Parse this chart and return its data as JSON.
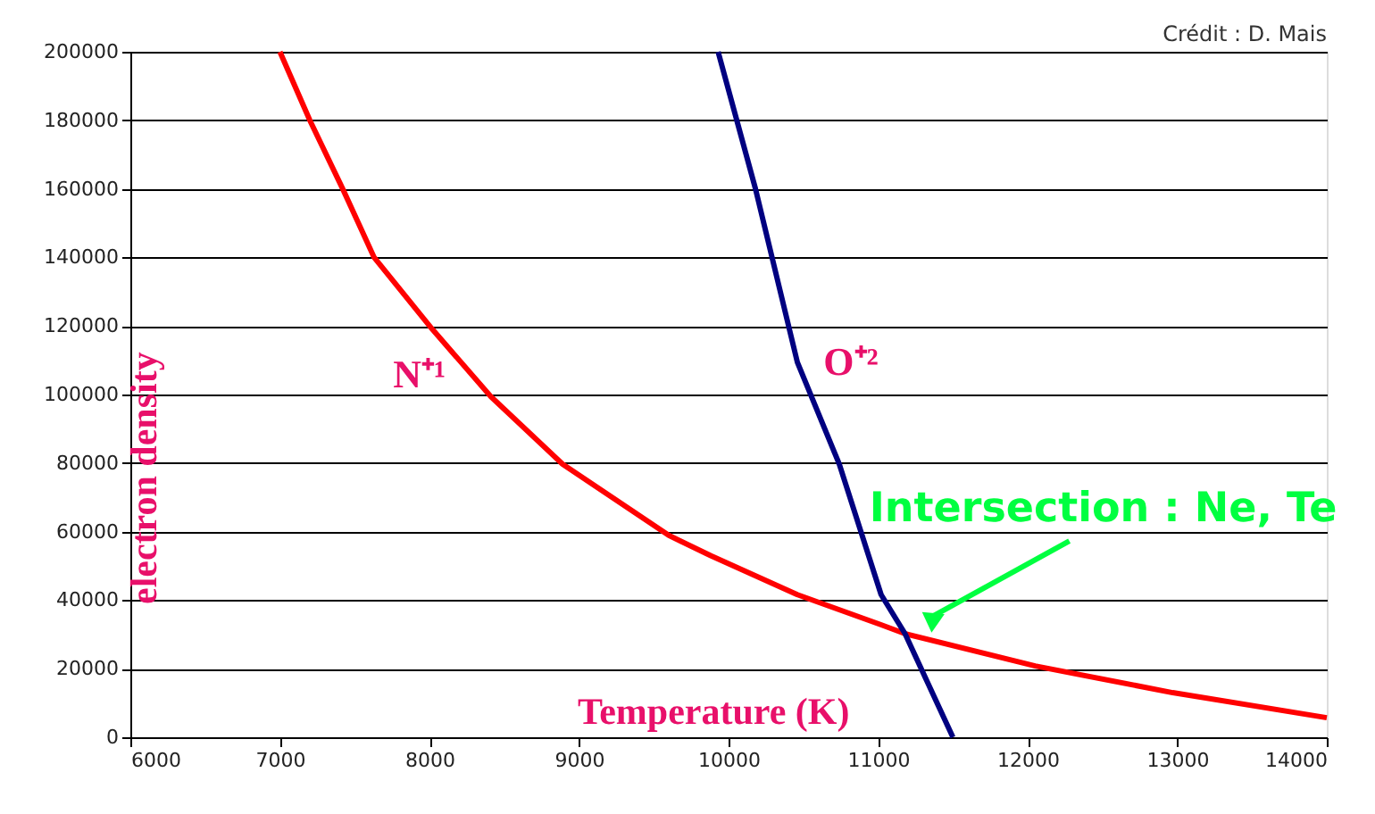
{
  "chart_data": {
    "type": "line",
    "xlabel": "Temperature (K)",
    "ylabel": "electron density",
    "series": [
      {
        "name": "N⁺¹",
        "color": "#ff0000",
        "x": [
          7000,
          7200,
          7420,
          7630,
          8020,
          8410,
          8890,
          9600,
          9880,
          10460,
          11020,
          11180,
          12050,
          12970,
          14000
        ],
        "values": [
          200000,
          180000,
          160000,
          140000,
          119000,
          99400,
          79700,
          58900,
          53000,
          41600,
          32800,
          30200,
          20800,
          13000,
          5700
        ]
      },
      {
        "name": "O⁺²",
        "color": "#000080",
        "x": [
          9930,
          10180,
          10460,
          10740,
          11020,
          11180,
          11500
        ],
        "values": [
          200000,
          160000,
          109400,
          79700,
          41600,
          30200,
          0
        ]
      }
    ],
    "xlim": [
      6000,
      14000
    ],
    "xticks": [
      6000,
      7000,
      8000,
      9000,
      10000,
      11000,
      12000,
      13000,
      14000
    ],
    "ylim": [
      0,
      200000
    ],
    "yticks": [
      0,
      20000,
      40000,
      60000,
      80000,
      100000,
      120000,
      140000,
      160000,
      180000,
      200000
    ],
    "grid": "y",
    "marker": "none",
    "line_style": "solid",
    "annotations": [
      {
        "text": "Intersection : Ne, Te",
        "x": 11180,
        "y": 30200
      },
      "Crédit : D. Mais"
    ]
  }
}
